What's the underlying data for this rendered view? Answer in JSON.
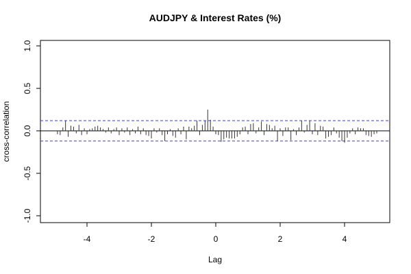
{
  "chart_data": {
    "type": "bar",
    "title": "AUDJPY & Interest Rates (%)",
    "xlabel": "Lag",
    "ylabel": "cross-correlation",
    "xlim": [
      -5.0,
      5.0
    ],
    "ylim": [
      -1.0,
      1.0
    ],
    "x_ticks": [
      -4,
      -2,
      0,
      2,
      4
    ],
    "x_tick_labels": [
      "-4",
      "-2",
      "0",
      "2",
      "4"
    ],
    "y_ticks": [
      -1.0,
      -0.5,
      0.0,
      0.5,
      1.0
    ],
    "y_tick_labels": [
      "-1.0",
      "-0.5",
      "0.0",
      "0.5",
      "1.0"
    ],
    "confidence_bounds": [
      0.12,
      -0.12
    ],
    "colors": {
      "spike": "#333333",
      "ci": "#3b3bd6",
      "zero": "#000000",
      "frame": "#000000"
    },
    "lags": [
      -4.9167,
      -4.8333,
      -4.75,
      -4.6667,
      -4.5833,
      -4.5,
      -4.4167,
      -4.3333,
      -4.25,
      -4.1667,
      -4.0833,
      -4.0,
      -3.9167,
      -3.8333,
      -3.75,
      -3.6667,
      -3.5833,
      -3.5,
      -3.4167,
      -3.3333,
      -3.25,
      -3.1667,
      -3.0833,
      -3.0,
      -2.9167,
      -2.8333,
      -2.75,
      -2.6667,
      -2.5833,
      -2.5,
      -2.4167,
      -2.3333,
      -2.25,
      -2.1667,
      -2.0833,
      -2.0,
      -1.9167,
      -1.8333,
      -1.75,
      -1.6667,
      -1.5833,
      -1.5,
      -1.4167,
      -1.3333,
      -1.25,
      -1.1667,
      -1.0833,
      -1.0,
      -0.9167,
      -0.8333,
      -0.75,
      -0.6667,
      -0.5833,
      -0.5,
      -0.4167,
      -0.3333,
      -0.25,
      -0.1667,
      -0.0833,
      0.0,
      0.0833,
      0.1667,
      0.25,
      0.3333,
      0.4167,
      0.5,
      0.5833,
      0.6667,
      0.75,
      0.8333,
      0.9167,
      1.0,
      1.0833,
      1.1667,
      1.25,
      1.3333,
      1.4167,
      1.5,
      1.5833,
      1.6667,
      1.75,
      1.8333,
      1.9167,
      2.0,
      2.0833,
      2.1667,
      2.25,
      2.3333,
      2.4167,
      2.5,
      2.5833,
      2.6667,
      2.75,
      2.8333,
      2.9167,
      3.0,
      3.0833,
      3.1667,
      3.25,
      3.3333,
      3.4167,
      3.5,
      3.5833,
      3.6667,
      3.75,
      3.8333,
      3.9167,
      4.0,
      4.0833,
      4.1667,
      4.25,
      4.3333,
      4.4167,
      4.5,
      4.5833,
      4.6667,
      4.75,
      4.8333,
      4.9167,
      5.0
    ],
    "values": [
      -0.04,
      -0.05,
      0.04,
      0.12,
      -0.07,
      0.06,
      0.05,
      -0.03,
      0.07,
      -0.05,
      0.03,
      -0.04,
      0.02,
      0.03,
      0.05,
      0.06,
      0.04,
      0.02,
      -0.02,
      0.04,
      -0.03,
      0.02,
      0.04,
      -0.05,
      0.03,
      -0.02,
      0.04,
      -0.05,
      0.02,
      -0.03,
      0.05,
      -0.04,
      0.03,
      -0.05,
      -0.06,
      -0.09,
      0.03,
      -0.02,
      0.03,
      -0.05,
      -0.12,
      -0.04,
      0.02,
      -0.06,
      -0.08,
      0.03,
      -0.04,
      0.05,
      -0.1,
      0.05,
      0.03,
      0.06,
      0.12,
      -0.05,
      0.07,
      0.12,
      0.25,
      0.13,
      0.05,
      -0.04,
      -0.05,
      -0.13,
      -0.1,
      -0.08,
      -0.09,
      -0.09,
      -0.09,
      -0.07,
      -0.04,
      0.04,
      0.05,
      -0.04,
      0.08,
      0.09,
      -0.03,
      0.04,
      0.11,
      -0.05,
      0.08,
      0.07,
      0.03,
      0.06,
      -0.12,
      0.03,
      -0.06,
      0.04,
      0.04,
      -0.11,
      0.02,
      -0.05,
      0.04,
      0.12,
      -0.02,
      0.07,
      0.12,
      -0.04,
      0.09,
      -0.05,
      0.06,
      0.05,
      -0.09,
      -0.07,
      -0.05,
      0.04,
      -0.03,
      -0.08,
      -0.12,
      -0.14,
      -0.08,
      -0.03,
      0.03,
      -0.04,
      0.04,
      0.03,
      0.03,
      -0.05,
      -0.06,
      -0.07,
      -0.04,
      -0.03
    ]
  }
}
